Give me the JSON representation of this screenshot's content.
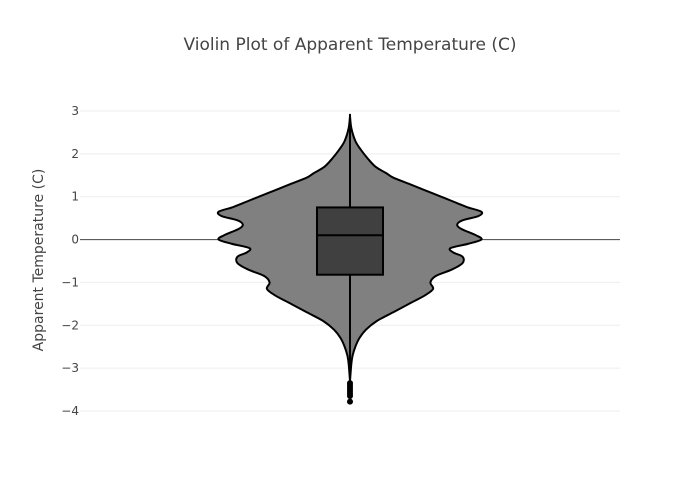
{
  "chart_data": {
    "type": "violin",
    "title": "Violin Plot of Apparent Temperature (C)",
    "xlabel": "",
    "ylabel": "Apparent Temperature (C)",
    "ylim": [
      -4,
      3
    ],
    "yticks": [
      {
        "value": 3,
        "label": "3"
      },
      {
        "value": 2,
        "label": "2"
      },
      {
        "value": 1,
        "label": "1"
      },
      {
        "value": 0,
        "label": "0"
      },
      {
        "value": -1,
        "label": "−1"
      },
      {
        "value": -2,
        "label": "−2"
      },
      {
        "value": -3,
        "label": "−3"
      },
      {
        "value": -4,
        "label": "−4"
      }
    ],
    "grid": true,
    "zero_line": true,
    "violin": {
      "fill_color": "#808080",
      "line_color": "#000000",
      "density_profile": [
        [
          2.88,
          0.0
        ],
        [
          2.6,
          0.01
        ],
        [
          2.3,
          0.04
        ],
        [
          2.1,
          0.08
        ],
        [
          1.9,
          0.13
        ],
        [
          1.7,
          0.19
        ],
        [
          1.55,
          0.27
        ],
        [
          1.45,
          0.32
        ],
        [
          1.3,
          0.44
        ],
        [
          1.15,
          0.56
        ],
        [
          1.05,
          0.64
        ],
        [
          0.95,
          0.72
        ],
        [
          0.85,
          0.8
        ],
        [
          0.75,
          0.88
        ],
        [
          0.65,
          0.98
        ],
        [
          0.55,
          0.96
        ],
        [
          0.45,
          0.84
        ],
        [
          0.35,
          0.8
        ],
        [
          0.25,
          0.83
        ],
        [
          0.1,
          0.94
        ],
        [
          0.0,
          0.98
        ],
        [
          -0.1,
          0.88
        ],
        [
          -0.2,
          0.75
        ],
        [
          -0.3,
          0.77
        ],
        [
          -0.4,
          0.84
        ],
        [
          -0.55,
          0.84
        ],
        [
          -0.7,
          0.76
        ],
        [
          -0.85,
          0.64
        ],
        [
          -1.0,
          0.6
        ],
        [
          -1.15,
          0.62
        ],
        [
          -1.3,
          0.56
        ],
        [
          -1.5,
          0.44
        ],
        [
          -1.7,
          0.32
        ],
        [
          -1.9,
          0.2
        ],
        [
          -2.1,
          0.12
        ],
        [
          -2.3,
          0.07
        ],
        [
          -2.5,
          0.04
        ],
        [
          -2.7,
          0.02
        ],
        [
          -2.9,
          0.01
        ],
        [
          -3.3,
          0.0
        ]
      ]
    },
    "box": {
      "q1": -0.82,
      "median": 0.1,
      "q3": 0.75,
      "whisker_low": -3.35,
      "whisker_high": 2.88,
      "fill_color": "#404040",
      "line_color": "#000000"
    },
    "outliers": [
      -3.35,
      -3.4,
      -3.45,
      -3.5,
      -3.55,
      -3.6,
      -3.65,
      -3.78
    ]
  }
}
